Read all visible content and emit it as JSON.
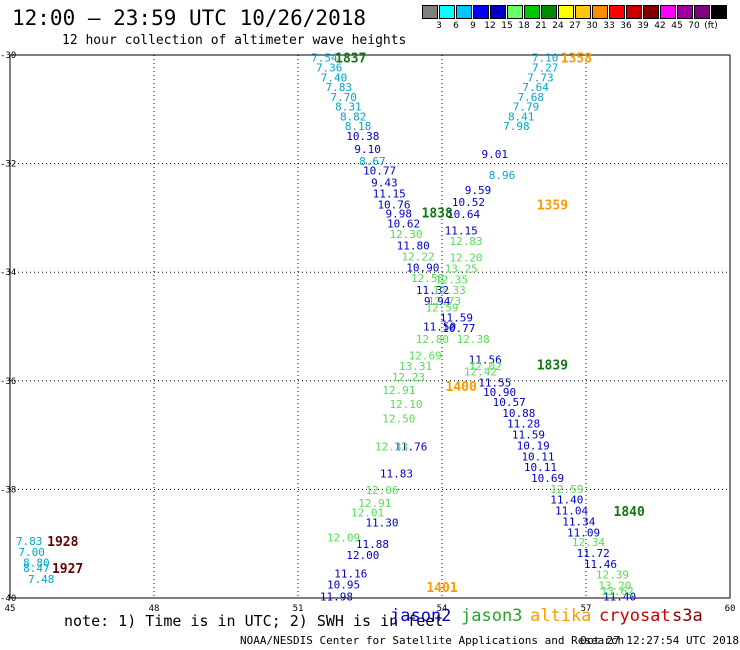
{
  "header": {
    "title": "12:00 — 23:59 UTC 10/26/2018",
    "subtitle": "12 hour collection of altimeter wave heights"
  },
  "colorbar": {
    "colors": [
      "#808080",
      "#00ffff",
      "#00c8ff",
      "#0000ff",
      "#0000c8",
      "#66ff66",
      "#00c800",
      "#008c00",
      "#ffff00",
      "#ffc800",
      "#ff8c00",
      "#ff0000",
      "#c80000",
      "#800000",
      "#ff00ff",
      "#a000a0",
      "#800080",
      "#000000"
    ],
    "labels": [
      "3",
      "6",
      "9",
      "12",
      "15",
      "18",
      "21",
      "24",
      "27",
      "30",
      "33",
      "36",
      "39",
      "42",
      "45",
      "70",
      "(ft)"
    ]
  },
  "note": "note:  1) Time is in UTC; 2) SWH is in feet",
  "legend": [
    {
      "name": "jason2",
      "color": "#0000cd"
    },
    {
      "name": "jason3",
      "color": "#22a822"
    },
    {
      "name": "altika",
      "color": "#ff9900"
    },
    {
      "name": "cryosat",
      "color": "#cc0000"
    },
    {
      "name": "s3a",
      "color": "#8b0000"
    }
  ],
  "footer": {
    "left": "NOAA/NESDIS Center for Satellite Applications and Research",
    "right": "Oct 27 12:27:54 UTC 2018"
  },
  "chart_data": {
    "type": "scatter",
    "xlim": [
      45,
      60
    ],
    "ylim": [
      -40,
      -30
    ],
    "x_ticks": [
      "45",
      "48",
      "51",
      "54",
      "57",
      "60"
    ],
    "y_ticks": [
      "-30",
      "-32",
      "-34",
      "-36",
      "-38",
      "-40"
    ],
    "grid": true,
    "time_labels": [
      {
        "text": "1837",
        "lon": 52.1,
        "lat": -30.05,
        "color": "#117711"
      },
      {
        "text": "1358",
        "lon": 56.8,
        "lat": -30.05,
        "color": "#ff9900"
      },
      {
        "text": "1838",
        "lon": 53.9,
        "lat": -32.9,
        "color": "#117711"
      },
      {
        "text": "1359",
        "lon": 56.3,
        "lat": -32.75,
        "color": "#ff9900"
      },
      {
        "text": "1839",
        "lon": 56.3,
        "lat": -35.7,
        "color": "#117711"
      },
      {
        "text": "1400",
        "lon": 54.4,
        "lat": -36.1,
        "color": "#ff9900"
      },
      {
        "text": "1840",
        "lon": 57.9,
        "lat": -38.4,
        "color": "#117711"
      },
      {
        "text": "1401",
        "lon": 54.0,
        "lat": -39.8,
        "color": "#ff9900"
      },
      {
        "text": "1928",
        "lon": 46.1,
        "lat": -38.95,
        "color": "#660000"
      },
      {
        "text": "1927",
        "lon": 46.2,
        "lat": -39.45,
        "color": "#660000"
      }
    ],
    "series": [
      {
        "name": "cyan",
        "color": "#00a8c8",
        "points": [
          {
            "lon": 51.55,
            "lat": -30.05,
            "v": "7.54"
          },
          {
            "lon": 51.65,
            "lat": -30.23,
            "v": "7.36"
          },
          {
            "lon": 51.75,
            "lat": -30.41,
            "v": "7.40"
          },
          {
            "lon": 51.85,
            "lat": -30.59,
            "v": "7.83"
          },
          {
            "lon": 51.95,
            "lat": -30.77,
            "v": "7.70"
          },
          {
            "lon": 52.05,
            "lat": -30.95,
            "v": "8.31"
          },
          {
            "lon": 52.15,
            "lat": -31.13,
            "v": "8.82"
          },
          {
            "lon": 52.25,
            "lat": -31.31,
            "v": "8.18"
          },
          {
            "lon": 52.55,
            "lat": -31.95,
            "v": "8.67"
          },
          {
            "lon": 56.15,
            "lat": -30.05,
            "v": "7.10"
          },
          {
            "lon": 56.15,
            "lat": -30.23,
            "v": "7.27"
          },
          {
            "lon": 56.05,
            "lat": -30.41,
            "v": "7.73"
          },
          {
            "lon": 55.95,
            "lat": -30.59,
            "v": "7.64"
          },
          {
            "lon": 55.85,
            "lat": -30.77,
            "v": "7.68"
          },
          {
            "lon": 55.75,
            "lat": -30.95,
            "v": "7.79"
          },
          {
            "lon": 55.65,
            "lat": -31.13,
            "v": "8.41"
          },
          {
            "lon": 55.55,
            "lat": -31.31,
            "v": "7.98"
          },
          {
            "lon": 55.25,
            "lat": -32.21,
            "v": "8.96"
          },
          {
            "lon": 45.4,
            "lat": -38.95,
            "v": "7.83"
          },
          {
            "lon": 45.45,
            "lat": -39.15,
            "v": "7.00"
          },
          {
            "lon": 45.55,
            "lat": -39.35,
            "v": "8.80"
          },
          {
            "lon": 45.55,
            "lat": -39.45,
            "v": "8.47"
          },
          {
            "lon": 45.65,
            "lat": -39.65,
            "v": "7.48"
          }
        ]
      },
      {
        "name": "blue",
        "color": "#0000cd",
        "points": [
          {
            "lon": 52.35,
            "lat": -31.49,
            "v": "10.38"
          },
          {
            "lon": 52.45,
            "lat": -31.73,
            "v": "9.10"
          },
          {
            "lon": 52.7,
            "lat": -32.13,
            "v": "10.77"
          },
          {
            "lon": 52.8,
            "lat": -32.35,
            "v": "9.43"
          },
          {
            "lon": 52.9,
            "lat": -32.55,
            "v": "11.15"
          },
          {
            "lon": 53.0,
            "lat": -32.75,
            "v": "10.76"
          },
          {
            "lon": 53.1,
            "lat": -32.92,
            "v": "9.98"
          },
          {
            "lon": 53.2,
            "lat": -33.1,
            "v": "10.62"
          },
          {
            "lon": 53.4,
            "lat": -33.51,
            "v": "11.80"
          },
          {
            "lon": 53.6,
            "lat": -33.91,
            "v": "10.90"
          },
          {
            "lon": 53.8,
            "lat": -34.33,
            "v": "11.32"
          },
          {
            "lon": 53.9,
            "lat": -34.53,
            "v": "9.94"
          },
          {
            "lon": 53.95,
            "lat": -35.0,
            "v": "11.50"
          },
          {
            "lon": 55.1,
            "lat": -31.82,
            "v": "9.01"
          },
          {
            "lon": 54.75,
            "lat": -32.49,
            "v": "9.59"
          },
          {
            "lon": 54.55,
            "lat": -32.71,
            "v": "10.52"
          },
          {
            "lon": 54.45,
            "lat": -32.93,
            "v": "10.64"
          },
          {
            "lon": 54.4,
            "lat": -33.23,
            "v": "11.15"
          },
          {
            "lon": 54.3,
            "lat": -34.83,
            "v": "11.59"
          },
          {
            "lon": 54.35,
            "lat": -35.03,
            "v": "10.77"
          },
          {
            "lon": 54.9,
            "lat": -35.61,
            "v": "11.56"
          },
          {
            "lon": 55.1,
            "lat": -36.03,
            "v": "11.55"
          },
          {
            "lon": 55.2,
            "lat": -36.21,
            "v": "10.90"
          },
          {
            "lon": 55.4,
            "lat": -36.39,
            "v": "10.57"
          },
          {
            "lon": 55.6,
            "lat": -36.59,
            "v": "10.88"
          },
          {
            "lon": 55.7,
            "lat": -36.79,
            "v": "11.28"
          },
          {
            "lon": 55.8,
            "lat": -36.99,
            "v": "11.59"
          },
          {
            "lon": 55.9,
            "lat": -37.19,
            "v": "10.19"
          },
          {
            "lon": 56.0,
            "lat": -37.39,
            "v": "10.11"
          },
          {
            "lon": 56.05,
            "lat": -37.59,
            "v": "10.11"
          },
          {
            "lon": 56.2,
            "lat": -37.79,
            "v": "10.69"
          },
          {
            "lon": 56.6,
            "lat": -38.19,
            "v": "11.40"
          },
          {
            "lon": 56.7,
            "lat": -38.39,
            "v": "11.04"
          },
          {
            "lon": 56.85,
            "lat": -38.59,
            "v": "11.34"
          },
          {
            "lon": 56.95,
            "lat": -38.79,
            "v": "11.09"
          },
          {
            "lon": 57.15,
            "lat": -39.17,
            "v": "11.72"
          },
          {
            "lon": 57.3,
            "lat": -39.37,
            "v": "11.46"
          },
          {
            "lon": 57.7,
            "lat": -39.97,
            "v": "11.40"
          },
          {
            "lon": 53.35,
            "lat": -37.21,
            "v": "11.76"
          },
          {
            "lon": 53.05,
            "lat": -37.71,
            "v": "11.83"
          },
          {
            "lon": 52.75,
            "lat": -38.61,
            "v": "11.30"
          },
          {
            "lon": 52.55,
            "lat": -39.01,
            "v": "11.88"
          },
          {
            "lon": 52.35,
            "lat": -39.21,
            "v": "12.00"
          },
          {
            "lon": 52.1,
            "lat": -39.55,
            "v": "11.16"
          },
          {
            "lon": 51.95,
            "lat": -39.75,
            "v": "10.95"
          },
          {
            "lon": 51.8,
            "lat": -39.97,
            "v": "11.98"
          }
        ]
      },
      {
        "name": "green",
        "color": "#55dd55",
        "points": [
          {
            "lon": 53.25,
            "lat": -33.3,
            "v": "12.30"
          },
          {
            "lon": 53.5,
            "lat": -33.71,
            "v": "12.22"
          },
          {
            "lon": 53.7,
            "lat": -34.11,
            "v": "12.58"
          },
          {
            "lon": 54.05,
            "lat": -34.53,
            "v": "12.73"
          },
          {
            "lon": 54.0,
            "lat": -34.65,
            "v": "12.59"
          },
          {
            "lon": 53.8,
            "lat": -35.23,
            "v": "12.80"
          },
          {
            "lon": 53.65,
            "lat": -35.53,
            "v": "12.69"
          },
          {
            "lon": 53.45,
            "lat": -35.73,
            "v": "13.31"
          },
          {
            "lon": 53.3,
            "lat": -35.93,
            "v": "12.23"
          },
          {
            "lon": 53.1,
            "lat": -36.17,
            "v": "12.91"
          },
          {
            "lon": 53.25,
            "lat": -36.43,
            "v": "12.10"
          },
          {
            "lon": 53.1,
            "lat": -36.69,
            "v": "12.50"
          },
          {
            "lon": 52.95,
            "lat": -37.21,
            "v": "12.33"
          },
          {
            "lon": 52.75,
            "lat": -38.01,
            "v": "12.06"
          },
          {
            "lon": 52.6,
            "lat": -38.25,
            "v": "12.91"
          },
          {
            "lon": 52.45,
            "lat": -38.43,
            "v": "12.01"
          },
          {
            "lon": 51.95,
            "lat": -38.89,
            "v": "12.09"
          },
          {
            "lon": 54.5,
            "lat": -33.43,
            "v": "12.83"
          },
          {
            "lon": 54.5,
            "lat": -33.73,
            "v": "12.20"
          },
          {
            "lon": 54.4,
            "lat": -33.93,
            "v": "13.25"
          },
          {
            "lon": 54.2,
            "lat": -34.13,
            "v": "12.35"
          },
          {
            "lon": 54.15,
            "lat": -34.33,
            "v": "12.33"
          },
          {
            "lon": 54.65,
            "lat": -35.23,
            "v": "12.38"
          },
          {
            "lon": 54.8,
            "lat": -35.83,
            "v": "12.42"
          },
          {
            "lon": 54.9,
            "lat": -35.73,
            "v": "12.02"
          },
          {
            "lon": 56.6,
            "lat": -37.99,
            "v": "12.59"
          },
          {
            "lon": 57.05,
            "lat": -38.97,
            "v": "12.34"
          },
          {
            "lon": 57.55,
            "lat": -39.57,
            "v": "12.39"
          },
          {
            "lon": 57.6,
            "lat": -39.77,
            "v": "13.20"
          },
          {
            "lon": 57.65,
            "lat": -39.87,
            "v": "13.62"
          }
        ]
      }
    ]
  }
}
